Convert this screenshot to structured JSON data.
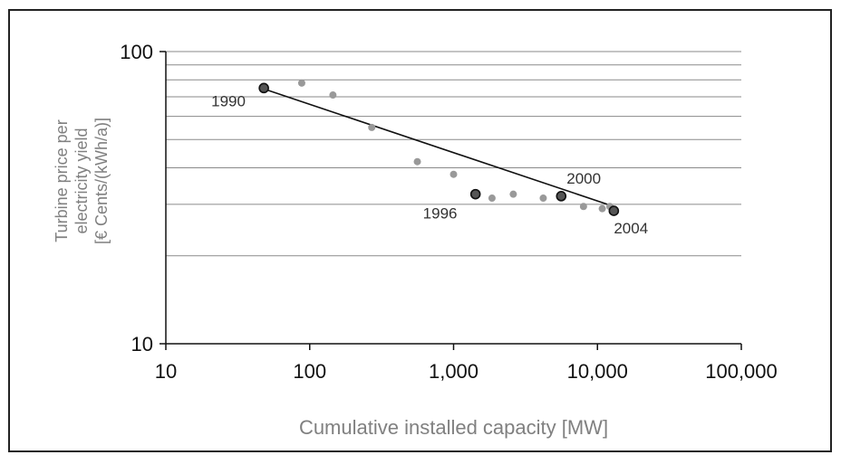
{
  "chart_data": {
    "type": "scatter",
    "x_scale": "log",
    "y_scale": "log",
    "xlim": [
      10,
      100000
    ],
    "ylim": [
      10,
      100
    ],
    "xlabel": "Cumulative installed capacity [MW]",
    "ylabel_lines": [
      "Turbine price per",
      "electricity yield",
      "[€ Cents/(kWh/a)]"
    ],
    "x_ticks": [
      10,
      100,
      1000,
      10000,
      100000
    ],
    "x_tick_labels": [
      "10",
      "100",
      "1,000",
      "10,000",
      "100,000"
    ],
    "y_ticks": [
      10,
      100
    ],
    "y_tick_labels": [
      "10",
      "100"
    ],
    "grid": "horizontal",
    "gridlines_y": [
      20,
      30,
      40,
      50,
      60,
      70,
      80,
      90
    ],
    "series": [
      {
        "kind": "points",
        "color": "#999999",
        "points": [
          {
            "x": 88,
            "y": 78
          },
          {
            "x": 145,
            "y": 71
          },
          {
            "x": 270,
            "y": 55
          },
          {
            "x": 560,
            "y": 42
          },
          {
            "x": 1000,
            "y": 38
          },
          {
            "x": 1850,
            "y": 31.5
          },
          {
            "x": 2600,
            "y": 32.5
          },
          {
            "x": 4200,
            "y": 31.5
          },
          {
            "x": 8000,
            "y": 29.5
          },
          {
            "x": 10800,
            "y": 29
          },
          {
            "x": 12200,
            "y": 29.5
          }
        ]
      },
      {
        "kind": "highlighted",
        "color": "#555555",
        "points": [
          {
            "x": 48,
            "y": 75
          },
          {
            "x": 1420,
            "y": 32.5
          },
          {
            "x": 5600,
            "y": 32
          },
          {
            "x": 13000,
            "y": 28.5
          }
        ]
      },
      {
        "kind": "trend_line",
        "color": "#111111",
        "points": [
          {
            "x": 50,
            "y": 74
          },
          {
            "x": 13000,
            "y": 29.5
          }
        ]
      }
    ],
    "annotations": [
      {
        "text": "1990",
        "x": 48,
        "y": 75
      },
      {
        "text": "1996",
        "x": 1420,
        "y": 32.5
      },
      {
        "text": "2000",
        "x": 5600,
        "y": 32
      },
      {
        "text": "2004",
        "x": 13000,
        "y": 28.5
      }
    ]
  }
}
